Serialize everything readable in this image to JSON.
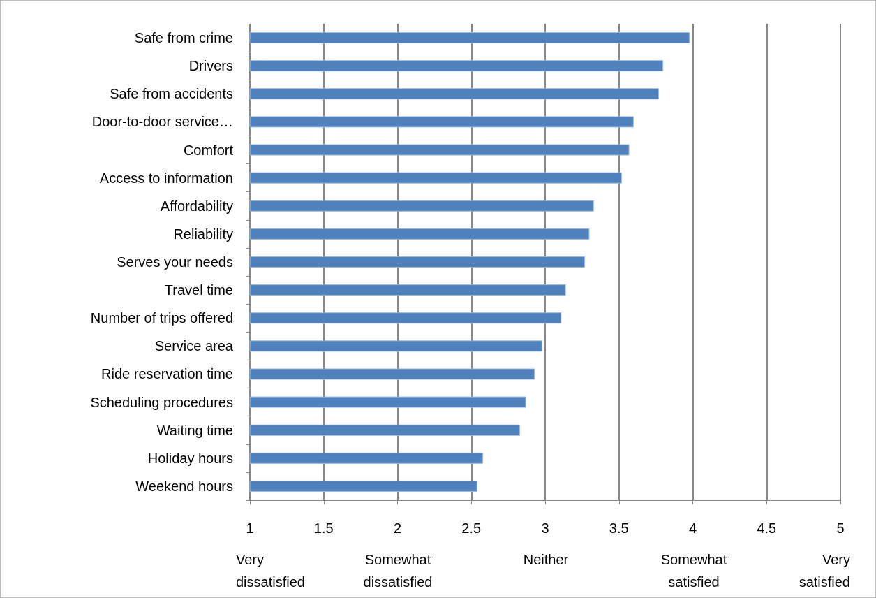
{
  "chart_data": {
    "type": "bar",
    "orientation": "horizontal",
    "categories": [
      "Safe from crime",
      "Drivers",
      "Safe from accidents",
      "Door-to-door service…",
      "Comfort",
      "Access to information",
      "Affordability",
      "Reliability",
      "Serves your needs",
      "Travel time",
      "Number of trips offered",
      "Service area",
      "Ride reservation time",
      "Scheduling procedures",
      "Waiting time",
      "Holiday hours",
      "Weekend hours"
    ],
    "values": [
      3.98,
      3.8,
      3.77,
      3.6,
      3.57,
      3.52,
      3.33,
      3.3,
      3.27,
      3.14,
      3.11,
      2.98,
      2.93,
      2.87,
      2.83,
      2.58,
      2.54
    ],
    "color": "#4f81bd",
    "xlim": [
      1,
      5
    ],
    "xticks": [
      1,
      1.5,
      2,
      2.5,
      3,
      3.5,
      4,
      4.5,
      5
    ],
    "annotations": [
      "Very\ndissatisfied",
      "Somewhat\ndissatisfied",
      "Neither",
      "Somewhat\nsatisfied",
      "Very\nsatisfied"
    ],
    "grid": "x"
  }
}
